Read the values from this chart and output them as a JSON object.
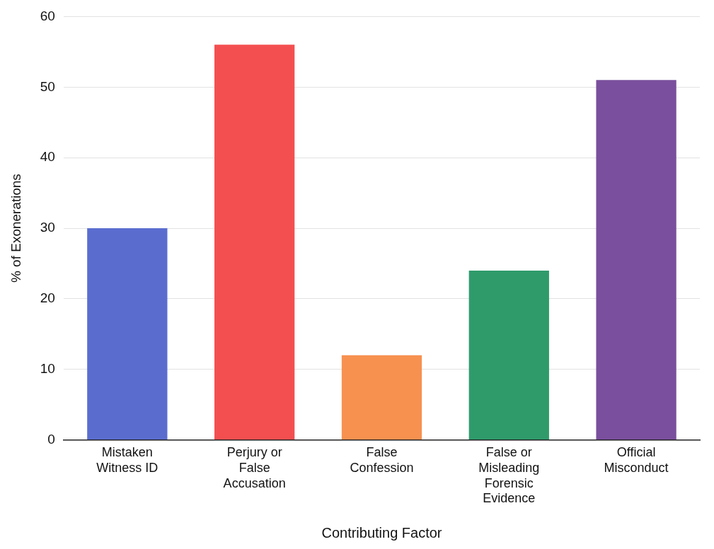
{
  "chart_data": {
    "type": "bar",
    "xlabel": "Contributing Factor",
    "ylabel": "% of Exonerations",
    "categories": [
      "Mistaken Witness ID",
      "Perjury or False Accusation",
      "False Confession",
      "False or Misleading Forensic Evidence",
      "Official Misconduct"
    ],
    "values": [
      30,
      56,
      12,
      24,
      51
    ],
    "colors": [
      "#5a6dcf",
      "#f44f50",
      "#f79150",
      "#2f9b6b",
      "#7a4f9d"
    ],
    "ylim": [
      0,
      60
    ],
    "yticks": [
      0,
      10,
      20,
      30,
      40,
      50,
      60
    ],
    "grid": "y",
    "legend": false
  }
}
